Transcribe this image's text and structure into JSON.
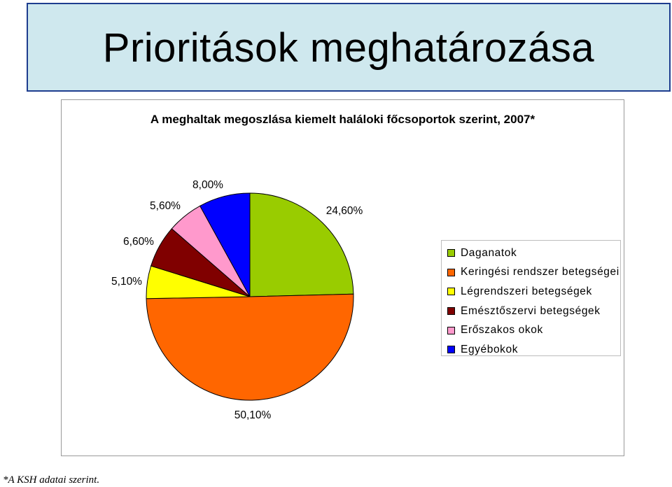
{
  "slide_title": "Prioritások meghatározása",
  "footnote": "*A KSH adatai szerint.",
  "chart_data": {
    "type": "pie",
    "title": "A meghaltak megoszlása kiemelt haláloki főcsoportok szerint, 2007*",
    "legend_position": "right",
    "slices": [
      {
        "name": "Daganatok",
        "value": 24.6,
        "label": "24,60%",
        "color": "#99cc00"
      },
      {
        "name": "Keringési rendszer betegségei",
        "value": 50.1,
        "label": "50,10%",
        "color": "#ff6600"
      },
      {
        "name": "Légrendszeri betegségek",
        "value": 5.1,
        "label": "5,10%",
        "color": "#ffff00"
      },
      {
        "name": "Emésztőszervi betegségek",
        "value": 6.6,
        "label": "6,60%",
        "color": "#800000"
      },
      {
        "name": "Erőszakos okok",
        "value": 5.6,
        "label": "5,60%",
        "color": "#ff99cc"
      },
      {
        "name": "Egyébokok",
        "value": 8.0,
        "label": "8,00%",
        "color": "#0000ff"
      }
    ]
  }
}
